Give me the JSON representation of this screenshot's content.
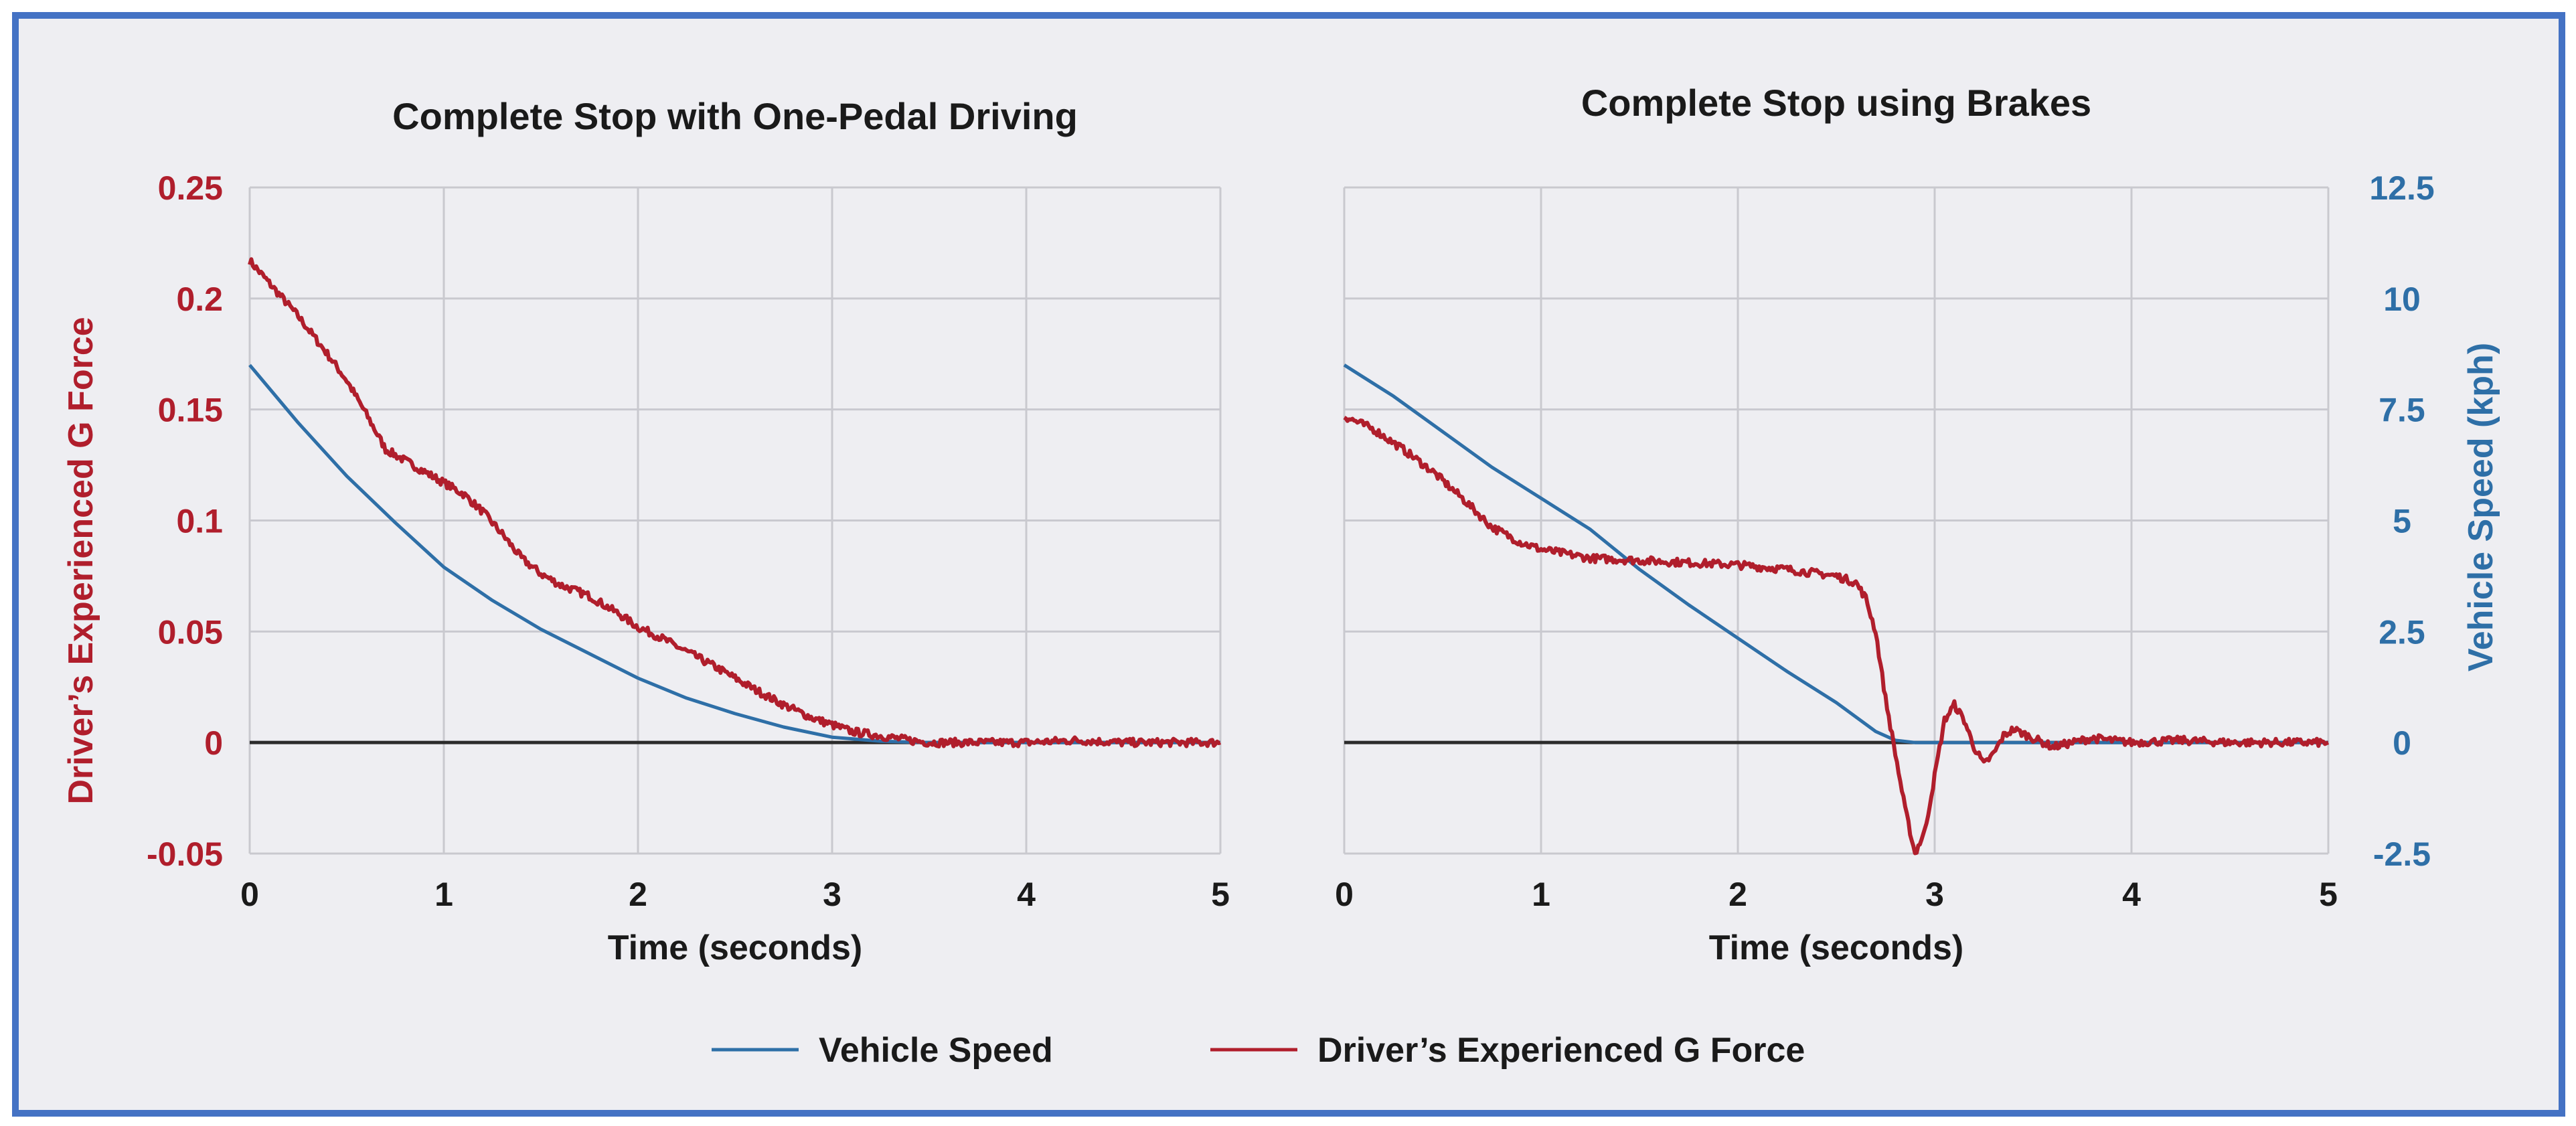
{
  "colors": {
    "speed": "#2e6fa7",
    "gforce": "#b01e2c",
    "zero_line": "#2b2b2b",
    "grid": "#c9c9cf",
    "left_axis_text": "#b01e2c",
    "right_axis_text": "#2e6fa7",
    "dark_text": "#1a1a1a"
  },
  "legend": {
    "speed_label": "Vehicle Speed",
    "gforce_label": "Driver’s Experienced G Force"
  },
  "chart_data": [
    {
      "type": "line",
      "title": "Complete Stop with One-Pedal Driving",
      "xlabel": "Time (seconds)",
      "ylabel": "Driver’s Experienced G Force",
      "xlim": [
        0,
        5
      ],
      "ylim": [
        -0.05,
        0.25
      ],
      "xticks": [
        "0",
        "1",
        "2",
        "3",
        "4",
        "5"
      ],
      "yticks": [
        "-0.05",
        "0",
        "0.05",
        "0.1",
        "0.15",
        "0.2",
        "0.25"
      ],
      "grid": true,
      "series": [
        {
          "name": "Vehicle Speed",
          "axis": "right",
          "x": [
            0,
            0.25,
            0.5,
            0.75,
            1.0,
            1.25,
            1.5,
            1.75,
            2.0,
            2.25,
            2.5,
            2.75,
            3.0,
            3.25,
            3.5,
            4.0,
            4.5,
            5.0
          ],
          "values": [
            8.5,
            7.2,
            6.0,
            4.95,
            3.95,
            3.2,
            2.55,
            2.0,
            1.45,
            1.0,
            0.65,
            0.35,
            0.12,
            0.03,
            0.0,
            0.0,
            0.0,
            0.0
          ]
        },
        {
          "name": "Driver’s Experienced G Force",
          "axis": "left",
          "x": [
            0,
            0.1,
            0.25,
            0.4,
            0.5,
            0.6,
            0.7,
            0.8,
            0.9,
            1.0,
            1.1,
            1.2,
            1.3,
            1.4,
            1.5,
            1.6,
            1.75,
            1.9,
            2.0,
            2.1,
            2.25,
            2.4,
            2.5,
            2.6,
            2.75,
            2.9,
            3.0,
            3.1,
            3.25,
            3.4,
            3.5,
            3.75,
            4.0,
            4.25,
            4.5,
            4.75,
            5.0
          ],
          "values": [
            0.217,
            0.207,
            0.192,
            0.175,
            0.163,
            0.148,
            0.132,
            0.127,
            0.122,
            0.117,
            0.112,
            0.104,
            0.094,
            0.083,
            0.076,
            0.071,
            0.066,
            0.058,
            0.052,
            0.048,
            0.041,
            0.034,
            0.029,
            0.024,
            0.017,
            0.011,
            0.008,
            0.005,
            0.003,
            0.001,
            0.0,
            0.0,
            0.0,
            0.001,
            0.0,
            0.0,
            0.0
          ]
        }
      ]
    },
    {
      "type": "line",
      "title": "Complete Stop using Brakes",
      "xlabel": "Time (seconds)",
      "ylabel": "Vehicle Speed (kph)",
      "xlim": [
        0,
        5
      ],
      "ylim": [
        -2.5,
        12.5
      ],
      "xticks": [
        "0",
        "1",
        "2",
        "3",
        "4",
        "5"
      ],
      "yticks": [
        "-2.5",
        "0",
        "2.5",
        "5",
        "7.5",
        "10",
        "12.5"
      ],
      "grid": true,
      "series": [
        {
          "name": "Vehicle Speed",
          "axis": "right",
          "x": [
            0,
            0.25,
            0.5,
            0.75,
            1.0,
            1.25,
            1.5,
            1.75,
            2.0,
            2.25,
            2.5,
            2.7,
            2.8,
            2.9,
            3.0,
            3.5,
            4.0,
            4.5,
            5.0
          ],
          "values": [
            8.5,
            7.8,
            7.0,
            6.2,
            5.5,
            4.8,
            3.9,
            3.1,
            2.35,
            1.6,
            0.9,
            0.25,
            0.05,
            0.0,
            0.0,
            0.0,
            0.0,
            0.0,
            0.0
          ]
        },
        {
          "name": "Driver’s Experienced G Force",
          "axis": "left",
          "x": [
            0,
            0.15,
            0.3,
            0.45,
            0.6,
            0.75,
            0.9,
            1.0,
            1.25,
            1.5,
            1.75,
            2.0,
            2.25,
            2.5,
            2.6,
            2.65,
            2.7,
            2.75,
            2.8,
            2.85,
            2.9,
            2.95,
            3.0,
            3.05,
            3.1,
            3.15,
            3.2,
            3.25,
            3.3,
            3.35,
            3.4,
            3.5,
            3.6,
            3.8,
            4.0,
            4.25,
            4.5,
            4.75,
            5.0
          ],
          "values": [
            0.147,
            0.141,
            0.132,
            0.122,
            0.11,
            0.097,
            0.09,
            0.087,
            0.083,
            0.082,
            0.081,
            0.08,
            0.078,
            0.075,
            0.072,
            0.065,
            0.05,
            0.02,
            -0.005,
            -0.03,
            -0.05,
            -0.04,
            -0.015,
            0.01,
            0.017,
            0.01,
            -0.002,
            -0.01,
            -0.005,
            0.003,
            0.006,
            0.002,
            -0.002,
            0.002,
            0.0,
            0.001,
            0.0,
            0.0,
            0.0
          ]
        }
      ]
    }
  ]
}
